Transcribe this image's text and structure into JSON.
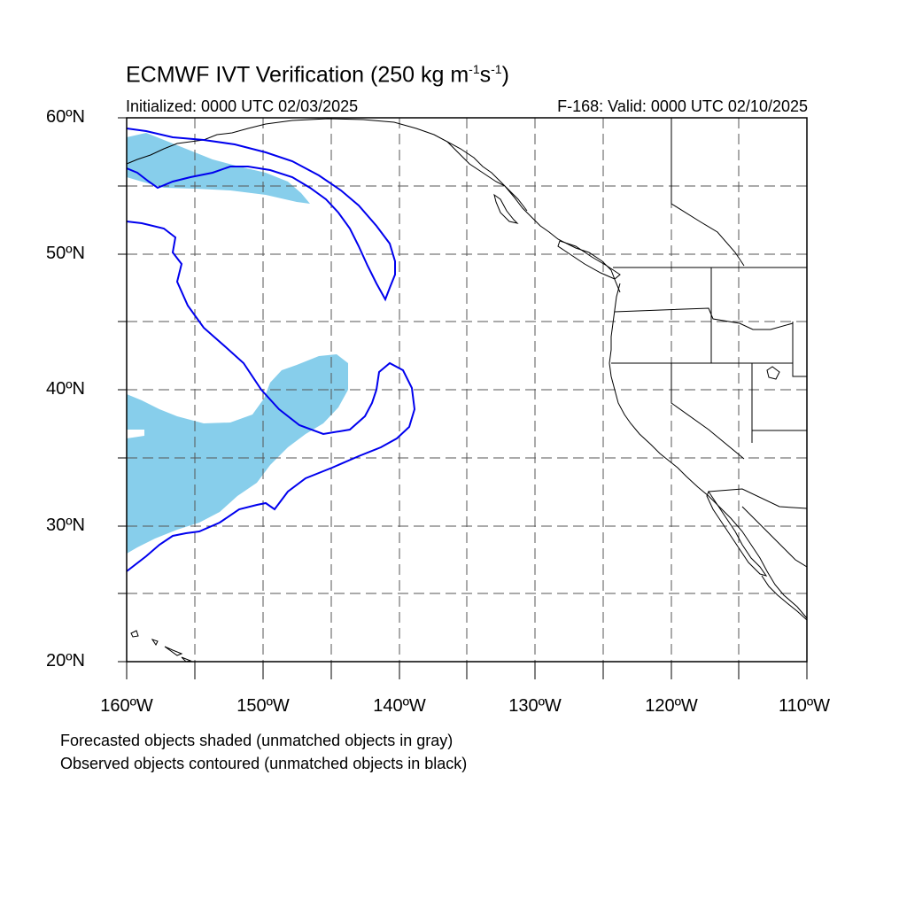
{
  "title": {
    "main": "ECMWF IVT Verification (250 kg m",
    "sup1": "-1",
    "s": "s",
    "sup2": "-1",
    "close": ")"
  },
  "subtitle": {
    "initialized": "Initialized: 0000 UTC 02/03/2025",
    "valid": "F-168: Valid: 0000 UTC 02/10/2025"
  },
  "axes": {
    "lat_labels": [
      "60ºN",
      "50ºN",
      "40ºN",
      "30ºN",
      "20ºN"
    ],
    "lon_labels": [
      "160ºW",
      "150ºW",
      "140ºW",
      "130ºW",
      "120ºW",
      "110ºW"
    ],
    "lat_range": [
      20,
      60
    ],
    "lon_range": [
      -160,
      -110
    ]
  },
  "legend": {
    "line1": "Forecasted objects shaded (unmatched objects in gray)",
    "line2": "Observed objects contoured (unmatched objects in black)"
  },
  "colors": {
    "forecast_fill": "#87ceeb",
    "observed_contour": "#0000ee",
    "coastline": "#000000",
    "grid": "#555555"
  }
}
